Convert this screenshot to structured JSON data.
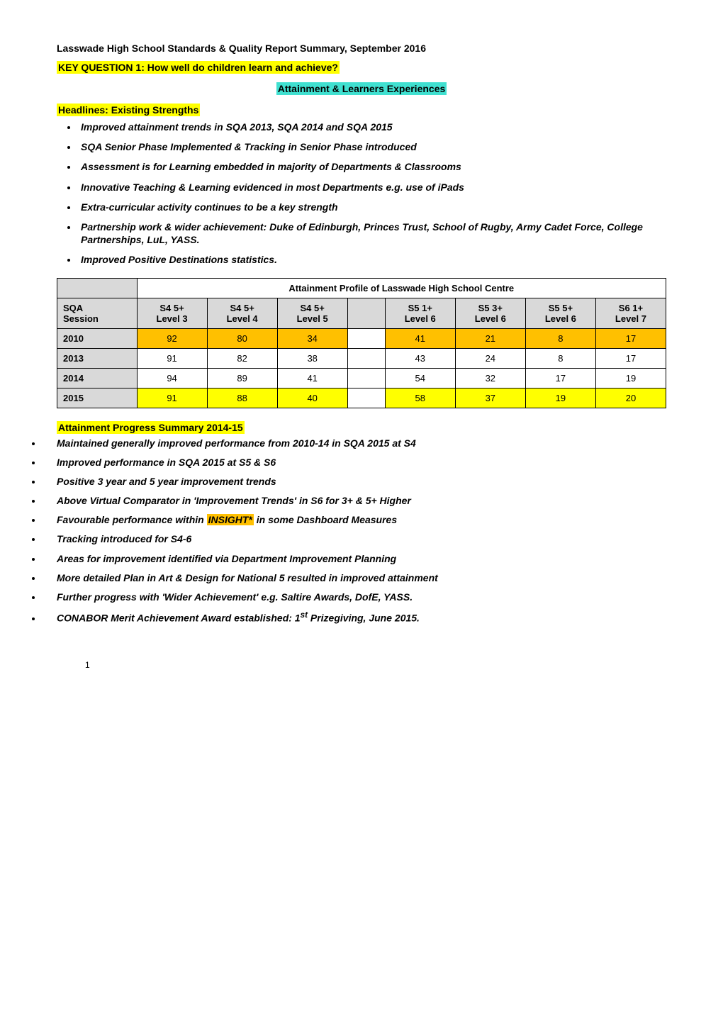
{
  "title": "Lasswade High School Standards & Quality Report Summary, September 2016",
  "key_question": {
    "text": "KEY QUESTION 1: How well do children learn and achieve?",
    "bg": "#ffff00"
  },
  "section_subtitle": {
    "text": "Attainment & Learners Experiences",
    "bg": "#40e0d0"
  },
  "headlines_label": {
    "text": "Headlines: Existing Strengths",
    "bg": "#ffff00"
  },
  "strengths": [
    "Improved attainment trends in SQA 2013, SQA 2014 and SQA 2015",
    "SQA Senior Phase Implemented & Tracking in Senior Phase introduced",
    "Assessment is for Learning embedded in majority of Departments & Classrooms",
    "Innovative Teaching & Learning evidenced in most Departments e.g. use of iPads",
    "Extra-curricular activity continues to be a key strength",
    "Partnership work & wider achievement:  Duke of Edinburgh, Princes Trust, School of Rugby, Army Cadet Force, College Partnerships, LuL, YASS.",
    "Improved Positive Destinations statistics."
  ],
  "table": {
    "title": "Attainment Profile of Lasswade High School Centre",
    "header_bg": "#d9d9d9",
    "columns": [
      "SQA\nSession",
      "S4 5+\nLevel 3",
      "S4 5+\nLevel 4",
      "S4 5+\nLevel 5",
      "",
      "S5 1+\nLevel 6",
      "S5 3+\nLevel 6",
      "S5 5+\nLevel 6",
      "S6 1+\nLevel 7"
    ],
    "rows": [
      {
        "year": "2010",
        "values": [
          "92",
          "80",
          "34",
          "",
          "41",
          "21",
          "8",
          "17"
        ],
        "bg": "#ffc000"
      },
      {
        "year": "2013",
        "values": [
          "91",
          "82",
          "38",
          "",
          "43",
          "24",
          "8",
          "17"
        ],
        "bg": "#ffffff"
      },
      {
        "year": "2014",
        "values": [
          "94",
          "89",
          "41",
          "",
          "54",
          "32",
          "17",
          "19"
        ],
        "bg": "#ffffff"
      },
      {
        "year": "2015",
        "values": [
          "91",
          "88",
          "40",
          "",
          "58",
          "37",
          "19",
          "20"
        ],
        "bg": "#ffff00"
      }
    ]
  },
  "progress_summary_label": {
    "text": "Attainment Progress Summary 2014-15",
    "bg": "#ffff00"
  },
  "progress": [
    {
      "pre": "Maintained generally improved performance from 2010-14 in SQA 2015 at S4"
    },
    {
      "pre": "Improved performance in SQA 2015 at S5 & S6"
    },
    {
      "pre": "Positive 3 year and 5 year improvement trends"
    },
    {
      "pre": "Above Virtual Comparator in 'Improvement Trends' in S6 for 3+ & 5+ Higher"
    },
    {
      "pre": "Favourable performance within ",
      "hl": "INSIGHT*",
      "hl_bg": "#ffc000",
      "post": " in some Dashboard Measures"
    },
    {
      "pre": "Tracking introduced for S4-6"
    },
    {
      "pre": "Areas for improvement identified via Department Improvement Planning"
    },
    {
      "pre": "More detailed Plan in Art & Design for National 5 resulted in improved attainment"
    },
    {
      "pre": "Further progress with 'Wider Achievement' e.g. Saltire Awards, DofE, YASS."
    },
    {
      "pre": "CONABOR Merit Achievement Award established: 1",
      "sup": "st",
      "post": " Prizegiving, June 2015."
    }
  ],
  "page_number": "1"
}
